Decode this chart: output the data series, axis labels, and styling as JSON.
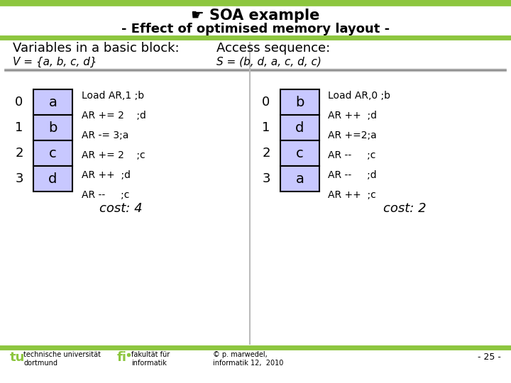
{
  "title_line1": "☛ SOA example",
  "title_line2": "- Effect of optimised memory layout -",
  "green_color": "#8DC63F",
  "bg_color": "#FFFFFF",
  "header_text": "Variables in a basic block:",
  "header_text2": "Access sequence:",
  "var_set": "V = {a, b, c, d}",
  "seq_set": "S = (b, d, a, c, d, c)",
  "left_indices": [
    "0",
    "1",
    "2",
    "3"
  ],
  "left_vars": [
    "a",
    "b",
    "c",
    "d"
  ],
  "left_instructions": [
    "Load AR,1 ;b",
    "AR += 2    ;d",
    "AR -= 3;a",
    "AR += 2    ;c",
    "AR ++  ;d",
    "AR --     ;c"
  ],
  "right_indices": [
    "0",
    "1",
    "2",
    "3"
  ],
  "right_vars": [
    "b",
    "d",
    "c",
    "a"
  ],
  "right_instructions": [
    "Load AR,0 ;b",
    "AR ++  ;d",
    "AR +=2;a",
    "AR --     ;c",
    "AR --     ;d",
    "AR ++  ;c"
  ],
  "left_cost": "cost: 4",
  "right_cost": "cost: 2",
  "box_fill": "#C8C8FF",
  "box_edge": "#000000",
  "footer_left1": "technische universität",
  "footer_left2": "dortmund",
  "footer_mid1": "fakultät für",
  "footer_mid2": "informatik",
  "footer_copy": "© p. marwedel,\ninformatik 12,  2010",
  "footer_page": "- 25 -"
}
